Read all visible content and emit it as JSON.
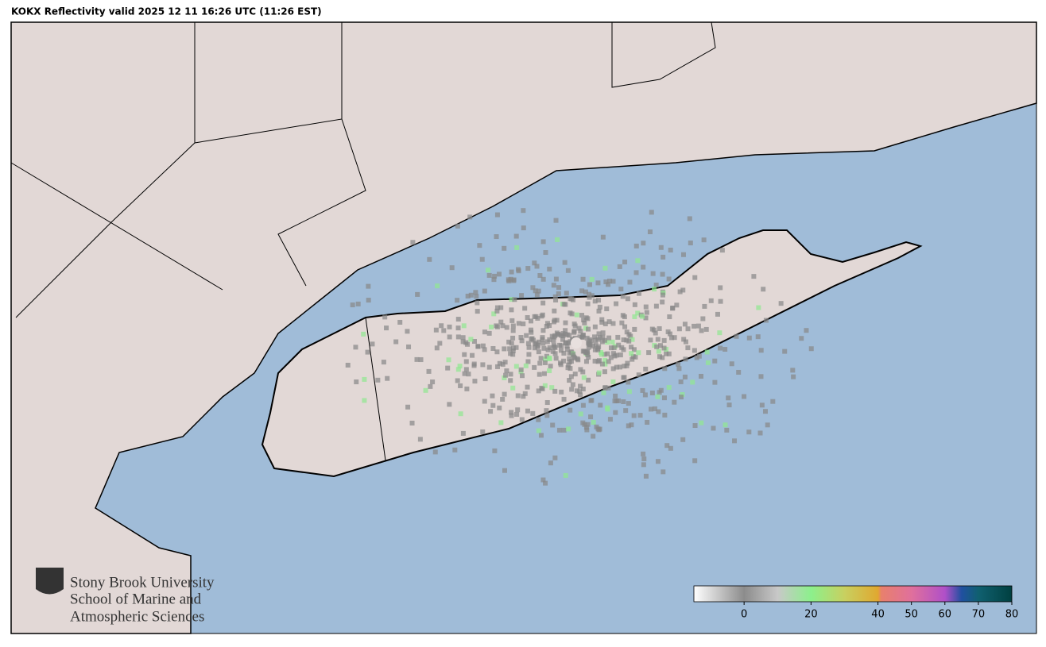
{
  "header": {
    "title": "KOKX Reflectivity valid 2025 12 11 16:26 UTC (11:26 EST)"
  },
  "logo": {
    "lines": [
      "Stony Brook University",
      "School of Marine and",
      "Atmospheric Sciences"
    ]
  },
  "colorbar": {
    "range": [
      -15,
      80
    ],
    "ticks": [
      0,
      20,
      40,
      50,
      60,
      70,
      80
    ],
    "stops": [
      {
        "value": -15,
        "color": "#ffffff"
      },
      {
        "value": 0,
        "color": "#8c8c8c"
      },
      {
        "value": 10,
        "color": "#c8c8c8"
      },
      {
        "value": 20,
        "color": "#8cf08c"
      },
      {
        "value": 30,
        "color": "#c8d060"
      },
      {
        "value": 40,
        "color": "#e0a830"
      },
      {
        "value": 41,
        "color": "#e8806c"
      },
      {
        "value": 50,
        "color": "#e0709c"
      },
      {
        "value": 60,
        "color": "#b050c8"
      },
      {
        "value": 65,
        "color": "#2050a0"
      },
      {
        "value": 70,
        "color": "#106070"
      },
      {
        "value": 80,
        "color": "#004040"
      }
    ]
  }
}
